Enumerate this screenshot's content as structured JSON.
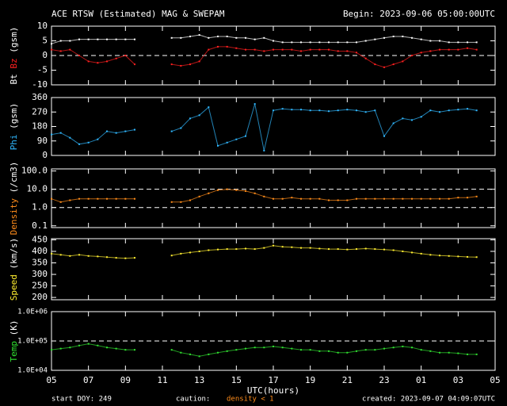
{
  "title": "ACE RTSW (Estimated) MAG & SWEPAM",
  "begin": "Begin: 2023-09-06 05:00:00UTC",
  "footer": {
    "start": "start DOY: 249",
    "caution": "caution:",
    "density": "density < 1",
    "created": "created: 2023-09-07 04:09:07UTC"
  },
  "chart_data": {
    "type": "scatter",
    "xlabel": "UTC(hours)",
    "xlim": [
      0,
      24
    ],
    "xticks": [
      {
        "value": 0,
        "label": "05"
      },
      {
        "value": 2,
        "label": "07"
      },
      {
        "value": 4,
        "label": "09"
      },
      {
        "value": 6,
        "label": "11"
      },
      {
        "value": 8,
        "label": "13"
      },
      {
        "value": 10,
        "label": "15"
      },
      {
        "value": 12,
        "label": "17"
      },
      {
        "value": 14,
        "label": "19"
      },
      {
        "value": 16,
        "label": "21"
      },
      {
        "value": 18,
        "label": "23"
      },
      {
        "value": 20,
        "label": "01"
      },
      {
        "value": 22,
        "label": "03"
      },
      {
        "value": 24,
        "label": "05"
      }
    ],
    "x": [
      0,
      0.5,
      1,
      1.5,
      2,
      2.5,
      3,
      3.5,
      4,
      4.5,
      5,
      5.5,
      6,
      6.5,
      7,
      7.5,
      8,
      8.5,
      9,
      9.5,
      10,
      10.5,
      11,
      11.5,
      12,
      12.5,
      13,
      13.5,
      14,
      14.5,
      15,
      15.5,
      16,
      16.5,
      17,
      17.5,
      18,
      18.5,
      19,
      19.5,
      20,
      20.5,
      21,
      21.5,
      22,
      22.5,
      23,
      23.5,
      24
    ],
    "panels": [
      {
        "unit": "(gsm)",
        "ylim": [
          -10,
          10
        ],
        "yticks": [
          -10,
          -5,
          0,
          5,
          10
        ],
        "reference_lines": [
          0
        ],
        "log": false,
        "series": [
          {
            "name": "Bt",
            "color": "#ffffff",
            "values": [
              4,
              5,
              5,
              5.5,
              5.5,
              5.5,
              5.5,
              5.5,
              5.5,
              5.5,
              null,
              null,
              null,
              6,
              6,
              6.5,
              7,
              6,
              6.5,
              6.5,
              6,
              6,
              5.5,
              6,
              5,
              4.5,
              4.5,
              4.5,
              4.5,
              4.5,
              4.5,
              4.5,
              4.5,
              4.5,
              5,
              5.5,
              6,
              6.5,
              6.5,
              6,
              5.5,
              5,
              5,
              4.5,
              4.5,
              4.5,
              4.5,
              null,
              null
            ]
          },
          {
            "name": "Bz",
            "color": "#ff2020",
            "values": [
              2,
              1.5,
              2,
              0,
              -2,
              -2.5,
              -2,
              -1,
              0,
              -3,
              null,
              null,
              null,
              -3,
              -3.5,
              -3,
              -2,
              2,
              3,
              3,
              2.5,
              2,
              2,
              1.5,
              2,
              2,
              2,
              1.5,
              2,
              2,
              2,
              1.5,
              1.5,
              1,
              -1,
              -3,
              -4,
              -3,
              -2,
              0,
              1,
              1.5,
              2,
              2,
              2,
              2.5,
              2,
              null,
              null
            ]
          }
        ]
      },
      {
        "unit": "(gsm)",
        "ylim": [
          0,
          360
        ],
        "yticks": [
          0,
          90,
          180,
          270,
          360
        ],
        "reference_lines": [],
        "log": false,
        "series": [
          {
            "name": "Phi",
            "color": "#30b8ff",
            "values": [
              130,
              140,
              110,
              70,
              80,
              100,
              150,
              140,
              150,
              160,
              null,
              null,
              null,
              150,
              170,
              230,
              250,
              300,
              60,
              80,
              100,
              120,
              320,
              30,
              280,
              290,
              285,
              285,
              280,
              280,
              275,
              280,
              285,
              280,
              270,
              280,
              120,
              200,
              230,
              220,
              240,
              280,
              270,
              280,
              285,
              290,
              280,
              null,
              null
            ]
          }
        ]
      },
      {
        "unit": "(/cm3)",
        "ylim": [
          0.08,
          130
        ],
        "yticks": [
          {
            "value": 0.1,
            "label": "0.1"
          },
          {
            "value": 1,
            "label": "1.0"
          },
          {
            "value": 10,
            "label": "10.0"
          },
          {
            "value": 100,
            "label": "100.0"
          }
        ],
        "reference_lines": [
          1,
          10
        ],
        "log": true,
        "series": [
          {
            "name": "Density",
            "color": "#ff8c1a",
            "values": [
              3,
              2,
              2.5,
              3,
              3,
              3,
              3,
              3,
              3,
              3,
              null,
              null,
              null,
              2,
              2,
              2.5,
              4,
              6,
              9,
              10,
              9,
              8,
              6,
              4,
              3,
              3,
              3.5,
              3,
              3,
              3,
              2.5,
              2.5,
              2.5,
              3,
              3,
              3,
              3,
              3,
              3,
              3,
              3,
              3,
              3,
              3,
              3.5,
              3.5,
              4,
              null,
              null
            ]
          }
        ]
      },
      {
        "unit": "(km/s)",
        "ylim": [
          190,
          455
        ],
        "yticks": [
          200,
          250,
          300,
          350,
          400,
          450
        ],
        "reference_lines": [],
        "log": false,
        "series": [
          {
            "name": "Speed",
            "color": "#ffee30",
            "values": [
              390,
              385,
              380,
              385,
              380,
              378,
              375,
              372,
              370,
              372,
              null,
              null,
              null,
              382,
              390,
              395,
              400,
              405,
              408,
              410,
              410,
              412,
              410,
              415,
              425,
              420,
              418,
              415,
              415,
              412,
              410,
              410,
              408,
              410,
              412,
              410,
              408,
              405,
              400,
              395,
              390,
              385,
              382,
              380,
              378,
              376,
              375,
              null,
              null
            ]
          }
        ]
      },
      {
        "unit": "(K)",
        "ylim": [
          10000,
          1000000
        ],
        "yticks": [
          {
            "value": 10000,
            "label": "1.0E+04"
          },
          {
            "value": 100000,
            "label": "1.0E+05"
          },
          {
            "value": 1000000,
            "label": "1.0E+06"
          }
        ],
        "reference_lines": [
          100000
        ],
        "log": true,
        "series": [
          {
            "name": "Temp",
            "color": "#30e030",
            "values": [
              50000,
              55000,
              60000,
              70000,
              80000,
              70000,
              60000,
              55000,
              50000,
              50000,
              null,
              null,
              null,
              50000,
              40000,
              35000,
              30000,
              35000,
              40000,
              45000,
              50000,
              55000,
              60000,
              60000,
              65000,
              60000,
              55000,
              50000,
              50000,
              45000,
              45000,
              40000,
              40000,
              45000,
              50000,
              50000,
              55000,
              60000,
              65000,
              60000,
              50000,
              45000,
              40000,
              40000,
              38000,
              35000,
              35000,
              null,
              null
            ]
          }
        ]
      }
    ]
  }
}
